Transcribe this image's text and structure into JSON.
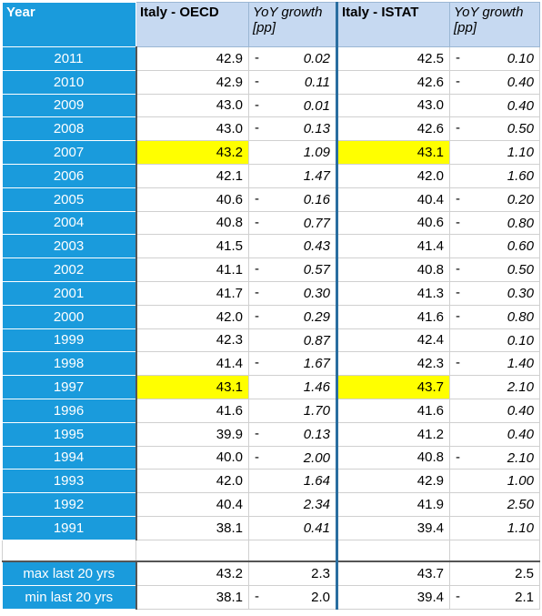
{
  "headers": {
    "year": "Year",
    "oecd": "Italy - OECD",
    "oecd_growth_1": "YoY growth",
    "oecd_growth_2": "[pp]",
    "istat": "Italy - ISTAT",
    "istat_growth_1": "YoY growth",
    "istat_growth_2": "[pp]"
  },
  "rows": [
    {
      "year": "2011",
      "oecd": "42.9",
      "og_sign": "-",
      "og": "0.02",
      "istat": "42.5",
      "ig_sign": "-",
      "ig": "0.10",
      "hl": false
    },
    {
      "year": "2010",
      "oecd": "42.9",
      "og_sign": "-",
      "og": "0.11",
      "istat": "42.6",
      "ig_sign": "-",
      "ig": "0.40",
      "hl": false
    },
    {
      "year": "2009",
      "oecd": "43.0",
      "og_sign": "-",
      "og": "0.01",
      "istat": "43.0",
      "ig_sign": "",
      "ig": "0.40",
      "hl": false
    },
    {
      "year": "2008",
      "oecd": "43.0",
      "og_sign": "-",
      "og": "0.13",
      "istat": "42.6",
      "ig_sign": "-",
      "ig": "0.50",
      "hl": false
    },
    {
      "year": "2007",
      "oecd": "43.2",
      "og_sign": "",
      "og": "1.09",
      "istat": "43.1",
      "ig_sign": "",
      "ig": "1.10",
      "hl": true
    },
    {
      "year": "2006",
      "oecd": "42.1",
      "og_sign": "",
      "og": "1.47",
      "istat": "42.0",
      "ig_sign": "",
      "ig": "1.60",
      "hl": false
    },
    {
      "year": "2005",
      "oecd": "40.6",
      "og_sign": "-",
      "og": "0.16",
      "istat": "40.4",
      "ig_sign": "-",
      "ig": "0.20",
      "hl": false
    },
    {
      "year": "2004",
      "oecd": "40.8",
      "og_sign": "-",
      "og": "0.77",
      "istat": "40.6",
      "ig_sign": "-",
      "ig": "0.80",
      "hl": false
    },
    {
      "year": "2003",
      "oecd": "41.5",
      "og_sign": "",
      "og": "0.43",
      "istat": "41.4",
      "ig_sign": "",
      "ig": "0.60",
      "hl": false
    },
    {
      "year": "2002",
      "oecd": "41.1",
      "og_sign": "-",
      "og": "0.57",
      "istat": "40.8",
      "ig_sign": "-",
      "ig": "0.50",
      "hl": false
    },
    {
      "year": "2001",
      "oecd": "41.7",
      "og_sign": "-",
      "og": "0.30",
      "istat": "41.3",
      "ig_sign": "-",
      "ig": "0.30",
      "hl": false
    },
    {
      "year": "2000",
      "oecd": "42.0",
      "og_sign": "-",
      "og": "0.29",
      "istat": "41.6",
      "ig_sign": "-",
      "ig": "0.80",
      "hl": false
    },
    {
      "year": "1999",
      "oecd": "42.3",
      "og_sign": "",
      "og": "0.87",
      "istat": "42.4",
      "ig_sign": "",
      "ig": "0.10",
      "hl": false
    },
    {
      "year": "1998",
      "oecd": "41.4",
      "og_sign": "-",
      "og": "1.67",
      "istat": "42.3",
      "ig_sign": "-",
      "ig": "1.40",
      "hl": false
    },
    {
      "year": "1997",
      "oecd": "43.1",
      "og_sign": "",
      "og": "1.46",
      "istat": "43.7",
      "ig_sign": "",
      "ig": "2.10",
      "hl": true
    },
    {
      "year": "1996",
      "oecd": "41.6",
      "og_sign": "",
      "og": "1.70",
      "istat": "41.6",
      "ig_sign": "",
      "ig": "0.40",
      "hl": false
    },
    {
      "year": "1995",
      "oecd": "39.9",
      "og_sign": "-",
      "og": "0.13",
      "istat": "41.2",
      "ig_sign": "",
      "ig": "0.40",
      "hl": false
    },
    {
      "year": "1994",
      "oecd": "40.0",
      "og_sign": "-",
      "og": "2.00",
      "istat": "40.8",
      "ig_sign": "-",
      "ig": "2.10",
      "hl": false
    },
    {
      "year": "1993",
      "oecd": "42.0",
      "og_sign": "",
      "og": "1.64",
      "istat": "42.9",
      "ig_sign": "",
      "ig": "1.00",
      "hl": false
    },
    {
      "year": "1992",
      "oecd": "40.4",
      "og_sign": "",
      "og": "2.34",
      "istat": "41.9",
      "ig_sign": "",
      "ig": "2.50",
      "hl": false
    },
    {
      "year": "1991",
      "oecd": "38.1",
      "og_sign": "",
      "og": "0.41",
      "istat": "39.4",
      "ig_sign": "",
      "ig": "1.10",
      "hl": false
    }
  ],
  "stats": [
    {
      "label": "max last 20 yrs",
      "oecd": "43.2",
      "og_sign": "",
      "og": "2.3",
      "istat": "43.7",
      "ig_sign": "",
      "ig": "2.5"
    },
    {
      "label": "min last 20 yrs",
      "oecd": "38.1",
      "og_sign": "-",
      "og": "2.0",
      "istat": "39.4",
      "ig_sign": "-",
      "ig": "2.1"
    }
  ],
  "colors": {
    "year_bg": "#1a9bdc",
    "header_bg": "#c6d9f1",
    "highlight": "#ffff00"
  }
}
